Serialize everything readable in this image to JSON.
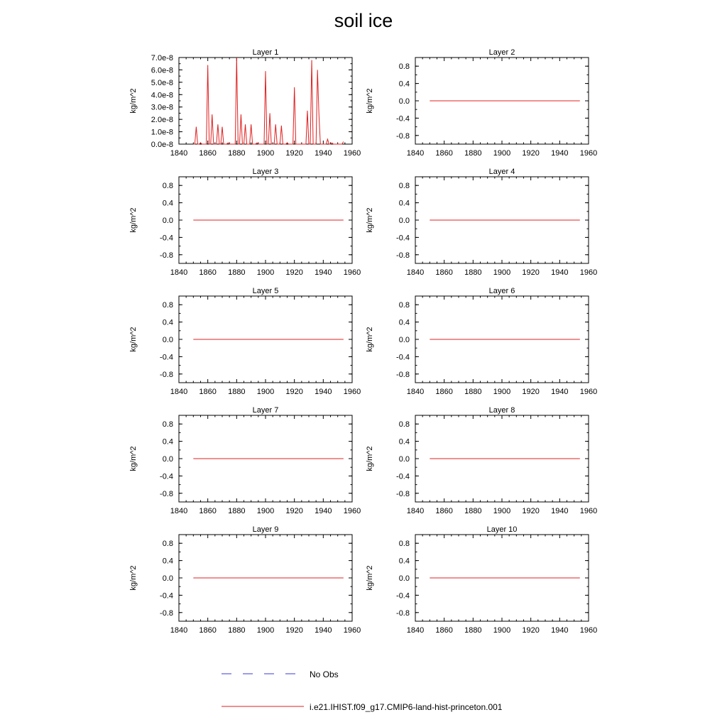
{
  "title": "soil ice",
  "legend": {
    "entries": [
      {
        "label": "No Obs",
        "style": "dashed",
        "color": "#3b3bd6"
      },
      {
        "label": "i.e21.IHIST.f09_g17.CMIP6-land-hist-princeton.001",
        "style": "solid",
        "color": "#e02020"
      }
    ]
  },
  "chart_data": [
    {
      "type": "line",
      "title": "Layer 1",
      "xlabel": "",
      "ylabel": "kg/m^2",
      "xlim": [
        1840,
        1960
      ],
      "ylim": [
        0,
        7e-08
      ],
      "x_ticks": [
        1840,
        1860,
        1880,
        1900,
        1920,
        1940,
        1960
      ],
      "y_ticks": [
        0,
        1e-08,
        2e-08,
        3e-08,
        4e-08,
        5e-08,
        6e-08,
        7e-08
      ],
      "y_tick_labels": [
        "0.0e-8",
        "1.0e-8",
        "2.0e-8",
        "3.0e-8",
        "4.0e-8",
        "5.0e-8",
        "6.0e-8",
        "7.0e-8"
      ],
      "series": [
        {
          "name": "i.e21.IHIST.f09_g17.CMIP6-land-hist-princeton.001",
          "color": "#e02020",
          "x": [
            1850,
            1851,
            1852,
            1853,
            1854,
            1855,
            1856,
            1857,
            1858,
            1859,
            1860,
            1861,
            1862,
            1863,
            1864,
            1865,
            1866,
            1867,
            1868,
            1869,
            1870,
            1871,
            1872,
            1873,
            1874,
            1875,
            1876,
            1877,
            1878,
            1879,
            1880,
            1881,
            1882,
            1883,
            1884,
            1885,
            1886,
            1887,
            1888,
            1889,
            1890,
            1891,
            1892,
            1893,
            1894,
            1895,
            1896,
            1897,
            1898,
            1899,
            1900,
            1901,
            1902,
            1903,
            1904,
            1905,
            1906,
            1907,
            1908,
            1909,
            1910,
            1911,
            1912,
            1913,
            1914,
            1915,
            1916,
            1917,
            1918,
            1919,
            1920,
            1921,
            1922,
            1923,
            1924,
            1925,
            1926,
            1927,
            1928,
            1929,
            1930,
            1931,
            1932,
            1933,
            1934,
            1935,
            1936,
            1937,
            1938,
            1939,
            1940,
            1941,
            1942,
            1943,
            1944,
            1945,
            1946,
            1947,
            1948,
            1949,
            1950,
            1951,
            1952,
            1953,
            1954
          ],
          "y": [
            0,
            0,
            1.4e-08,
            0,
            0,
            1e-09,
            0,
            0,
            0,
            0,
            6.4e-08,
            0,
            0,
            2.4e-08,
            0,
            0,
            0,
            1.6e-08,
            0,
            0,
            1.4e-08,
            0,
            0,
            0,
            1e-09,
            0,
            0,
            0,
            0,
            0,
            7e-08,
            0,
            0,
            2.4e-08,
            0,
            0,
            1.6e-08,
            0,
            0,
            0,
            1.6e-08,
            0,
            0,
            0,
            1e-09,
            0,
            0,
            0,
            0,
            0,
            5.9e-08,
            0,
            0,
            2.5e-08,
            0,
            0,
            0,
            1.6e-08,
            0,
            0,
            0,
            1.5e-08,
            0,
            0,
            0,
            1e-09,
            0,
            0,
            0,
            0,
            4.6e-08,
            0,
            0,
            0,
            0,
            0,
            0,
            0,
            0,
            2.7e-08,
            0,
            0,
            6.8e-08,
            0,
            0,
            0,
            6e-08,
            2.4e-08,
            0,
            0,
            0,
            0,
            0,
            4e-09,
            0,
            0,
            1e-09,
            0,
            0,
            0,
            0,
            0,
            0,
            0,
            2e-09
          ]
        }
      ]
    },
    {
      "type": "line",
      "title": "Layer 2",
      "ylabel": "kg/m^2",
      "xlim": [
        1840,
        1960
      ],
      "ylim": [
        -1,
        1
      ],
      "x_ticks": [
        1840,
        1860,
        1880,
        1900,
        1920,
        1940,
        1960
      ],
      "y_ticks": [
        -0.8,
        -0.4,
        0,
        0.4,
        0.8
      ],
      "y_tick_labels": [
        "-0.8",
        "-0.4",
        "0.0",
        "0.4",
        "0.8"
      ],
      "series": [
        {
          "name": "i.e21.IHIST.f09_g17.CMIP6-land-hist-princeton.001",
          "color": "#e02020",
          "x": [
            1850,
            1954
          ],
          "y": [
            0,
            0
          ]
        }
      ]
    },
    {
      "type": "line",
      "title": "Layer 3",
      "ylabel": "kg/m^2",
      "xlim": [
        1840,
        1960
      ],
      "ylim": [
        -1,
        1
      ],
      "x_ticks": [
        1840,
        1860,
        1880,
        1900,
        1920,
        1940,
        1960
      ],
      "y_ticks": [
        -0.8,
        -0.4,
        0,
        0.4,
        0.8
      ],
      "y_tick_labels": [
        "-0.8",
        "-0.4",
        "0.0",
        "0.4",
        "0.8"
      ],
      "series": [
        {
          "name": "i.e21.IHIST.f09_g17.CMIP6-land-hist-princeton.001",
          "color": "#e02020",
          "x": [
            1850,
            1954
          ],
          "y": [
            0,
            0
          ]
        }
      ]
    },
    {
      "type": "line",
      "title": "Layer 4",
      "ylabel": "kg/m^2",
      "xlim": [
        1840,
        1960
      ],
      "ylim": [
        -1,
        1
      ],
      "x_ticks": [
        1840,
        1860,
        1880,
        1900,
        1920,
        1940,
        1960
      ],
      "y_ticks": [
        -0.8,
        -0.4,
        0,
        0.4,
        0.8
      ],
      "y_tick_labels": [
        "-0.8",
        "-0.4",
        "0.0",
        "0.4",
        "0.8"
      ],
      "series": [
        {
          "name": "i.e21.IHIST.f09_g17.CMIP6-land-hist-princeton.001",
          "color": "#e02020",
          "x": [
            1850,
            1954
          ],
          "y": [
            0,
            0
          ]
        }
      ]
    },
    {
      "type": "line",
      "title": "Layer 5",
      "ylabel": "kg/m^2",
      "xlim": [
        1840,
        1960
      ],
      "ylim": [
        -1,
        1
      ],
      "x_ticks": [
        1840,
        1860,
        1880,
        1900,
        1920,
        1940,
        1960
      ],
      "y_ticks": [
        -0.8,
        -0.4,
        0,
        0.4,
        0.8
      ],
      "y_tick_labels": [
        "-0.8",
        "-0.4",
        "0.0",
        "0.4",
        "0.8"
      ],
      "series": [
        {
          "name": "i.e21.IHIST.f09_g17.CMIP6-land-hist-princeton.001",
          "color": "#e02020",
          "x": [
            1850,
            1954
          ],
          "y": [
            0,
            0
          ]
        }
      ]
    },
    {
      "type": "line",
      "title": "Layer 6",
      "ylabel": "kg/m^2",
      "xlim": [
        1840,
        1960
      ],
      "ylim": [
        -1,
        1
      ],
      "x_ticks": [
        1840,
        1860,
        1880,
        1900,
        1920,
        1940,
        1960
      ],
      "y_ticks": [
        -0.8,
        -0.4,
        0,
        0.4,
        0.8
      ],
      "y_tick_labels": [
        "-0.8",
        "-0.4",
        "0.0",
        "0.4",
        "0.8"
      ],
      "series": [
        {
          "name": "i.e21.IHIST.f09_g17.CMIP6-land-hist-princeton.001",
          "color": "#e02020",
          "x": [
            1850,
            1954
          ],
          "y": [
            0,
            0
          ]
        }
      ]
    },
    {
      "type": "line",
      "title": "Layer 7",
      "ylabel": "kg/m^2",
      "xlim": [
        1840,
        1960
      ],
      "ylim": [
        -1,
        1
      ],
      "x_ticks": [
        1840,
        1860,
        1880,
        1900,
        1920,
        1940,
        1960
      ],
      "y_ticks": [
        -0.8,
        -0.4,
        0,
        0.4,
        0.8
      ],
      "y_tick_labels": [
        "-0.8",
        "-0.4",
        "0.0",
        "0.4",
        "0.8"
      ],
      "series": [
        {
          "name": "i.e21.IHIST.f09_g17.CMIP6-land-hist-princeton.001",
          "color": "#e02020",
          "x": [
            1850,
            1954
          ],
          "y": [
            0,
            0
          ]
        }
      ]
    },
    {
      "type": "line",
      "title": "Layer 8",
      "ylabel": "kg/m^2",
      "xlim": [
        1840,
        1960
      ],
      "ylim": [
        -1,
        1
      ],
      "x_ticks": [
        1840,
        1860,
        1880,
        1900,
        1920,
        1940,
        1960
      ],
      "y_ticks": [
        -0.8,
        -0.4,
        0,
        0.4,
        0.8
      ],
      "y_tick_labels": [
        "-0.8",
        "-0.4",
        "0.0",
        "0.4",
        "0.8"
      ],
      "series": [
        {
          "name": "i.e21.IHIST.f09_g17.CMIP6-land-hist-princeton.001",
          "color": "#e02020",
          "x": [
            1850,
            1954
          ],
          "y": [
            0,
            0
          ]
        }
      ]
    },
    {
      "type": "line",
      "title": "Layer 9",
      "ylabel": "kg/m^2",
      "xlim": [
        1840,
        1960
      ],
      "ylim": [
        -1,
        1
      ],
      "x_ticks": [
        1840,
        1860,
        1880,
        1900,
        1920,
        1940,
        1960
      ],
      "y_ticks": [
        -0.8,
        -0.4,
        0,
        0.4,
        0.8
      ],
      "y_tick_labels": [
        "-0.8",
        "-0.4",
        "0.0",
        "0.4",
        "0.8"
      ],
      "series": [
        {
          "name": "i.e21.IHIST.f09_g17.CMIP6-land-hist-princeton.001",
          "color": "#e02020",
          "x": [
            1850,
            1954
          ],
          "y": [
            0,
            0
          ]
        }
      ]
    },
    {
      "type": "line",
      "title": "Layer 10",
      "ylabel": "kg/m^2",
      "xlim": [
        1840,
        1960
      ],
      "ylim": [
        -1,
        1
      ],
      "x_ticks": [
        1840,
        1860,
        1880,
        1900,
        1920,
        1940,
        1960
      ],
      "y_ticks": [
        -0.8,
        -0.4,
        0,
        0.4,
        0.8
      ],
      "y_tick_labels": [
        "-0.8",
        "-0.4",
        "0.0",
        "0.4",
        "0.8"
      ],
      "series": [
        {
          "name": "i.e21.IHIST.f09_g17.CMIP6-land-hist-princeton.001",
          "color": "#e02020",
          "x": [
            1850,
            1954
          ],
          "y": [
            0,
            0
          ]
        }
      ]
    }
  ]
}
